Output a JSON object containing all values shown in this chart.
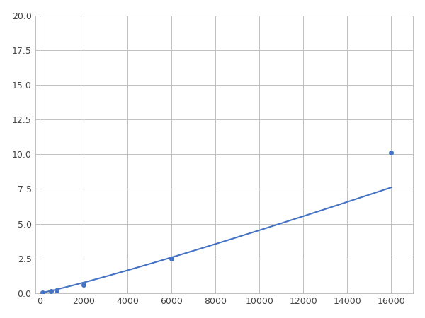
{
  "x": [
    125,
    500,
    750,
    2000,
    6000,
    16000
  ],
  "y": [
    0.05,
    0.15,
    0.2,
    0.6,
    2.5,
    10.1
  ],
  "line_color": "#4472c4",
  "marker_color": "#4472c4",
  "marker_size": 4,
  "xlim": [
    -200,
    17000
  ],
  "ylim": [
    0,
    20.0
  ],
  "xticks": [
    0,
    2000,
    4000,
    6000,
    8000,
    10000,
    12000,
    14000,
    16000
  ],
  "yticks": [
    0.0,
    2.5,
    5.0,
    7.5,
    10.0,
    12.5,
    15.0,
    17.5,
    20.0
  ],
  "grid_color": "#c0c0c0",
  "background_color": "#ffffff",
  "figsize": [
    6.0,
    4.5
  ],
  "dpi": 100
}
